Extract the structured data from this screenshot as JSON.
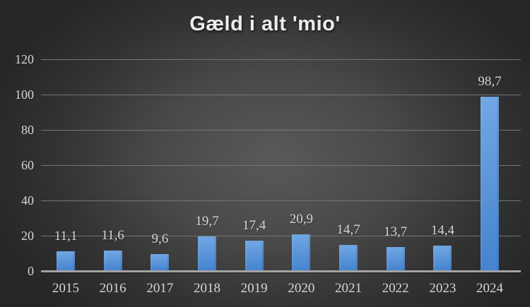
{
  "title": "Gæld i alt 'mio'",
  "colors": {
    "background": "#262626",
    "background_center": "#5f5f5f",
    "gridline": "#757575",
    "axis_line": "#a3a3a3",
    "label": "#d6d6d6",
    "title": "#ededed",
    "bar_top": "#71a7e3",
    "bar_bottom": "#4583cf"
  },
  "chart_data": {
    "type": "bar",
    "title": "Gæld i alt 'mio'",
    "categories": [
      "2015",
      "2016",
      "2017",
      "2018",
      "2019",
      "2020",
      "2021",
      "2022",
      "2023",
      "2024"
    ],
    "values": [
      11.1,
      11.6,
      9.6,
      19.7,
      17.4,
      20.9,
      14.7,
      13.7,
      14.4,
      98.7
    ],
    "value_labels": [
      "11,1",
      "11,6",
      "9,6",
      "19,7",
      "17,4",
      "20,9",
      "14,7",
      "13,7",
      "14,4",
      "98,7"
    ],
    "xlabel": "",
    "ylabel": "",
    "ylim": [
      0,
      120
    ],
    "yticks": [
      0,
      20,
      40,
      60,
      80,
      100,
      120
    ],
    "grid": true,
    "legend": null,
    "decimal_separator": ",",
    "series_name": "Gæld i alt"
  }
}
